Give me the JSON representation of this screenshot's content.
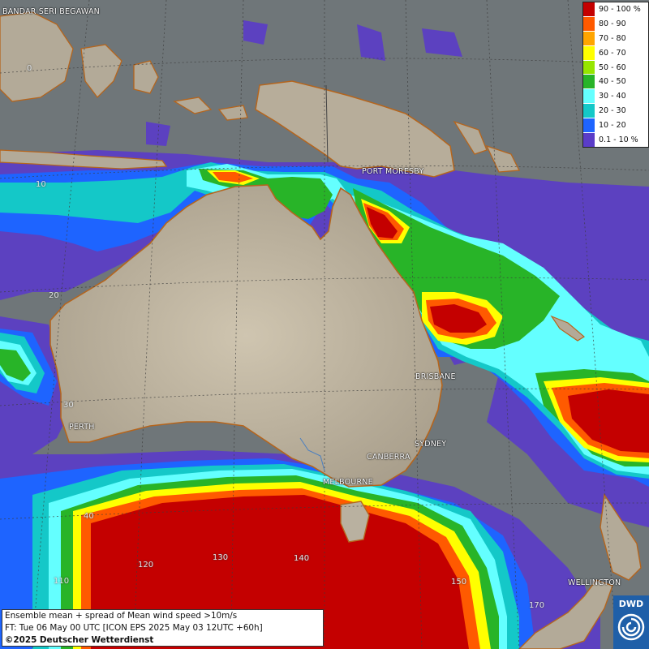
{
  "cities": [
    {
      "id": "bandar-seri-begawan",
      "label": "BANDAR SERI BEGAWAN"
    },
    {
      "id": "port-moresby",
      "label": "PORT MORESBY"
    },
    {
      "id": "brisbane",
      "label": "BRISBANE"
    },
    {
      "id": "sydney",
      "label": "SYDNEY"
    },
    {
      "id": "canberra",
      "label": "CANBERRA"
    },
    {
      "id": "melbourne",
      "label": "MELBOURNE"
    },
    {
      "id": "perth",
      "label": "PERTH"
    },
    {
      "id": "wellington",
      "label": "WELLINGTON"
    }
  ],
  "grid_labels": {
    "lat_0": "0",
    "lat_10": "10",
    "lat_20": "20",
    "lat_30": "30",
    "lat_40": "40",
    "lon_110": "110",
    "lon_120": "120",
    "lon_130": "130",
    "lon_140": "140",
    "lon_150": "150",
    "lon_170": "170"
  },
  "legend": {
    "items": [
      {
        "label": "90 - 100 %",
        "color": "#c40000"
      },
      {
        "label": "80 - 90",
        "color": "#ff5a00"
      },
      {
        "label": "70 - 80",
        "color": "#ffa500"
      },
      {
        "label": "60 - 70",
        "color": "#ffff00"
      },
      {
        "label": "50 - 60",
        "color": "#96e600"
      },
      {
        "label": "40 - 50",
        "color": "#28b428"
      },
      {
        "label": "30 - 40",
        "color": "#64ffff"
      },
      {
        "label": "20 - 30",
        "color": "#14c8c8"
      },
      {
        "label": "10 - 20",
        "color": "#1e64ff"
      },
      {
        "label": "0.1 - 10 %",
        "color": "#5a3cc8"
      }
    ]
  },
  "info": {
    "line1": "Ensemble mean + spread of Mean wind speed >10m/s",
    "line2": "FT: Tue 06 May 00 UTC [ICON EPS 2025 May 03 12UTC +60h]",
    "line3": "©2025 Deutscher Wetterdienst"
  },
  "logo": {
    "text": "DWD"
  },
  "colors": {
    "ocean": "#6f7679",
    "land": "#b9b1a0",
    "coast": "#b5651d"
  }
}
